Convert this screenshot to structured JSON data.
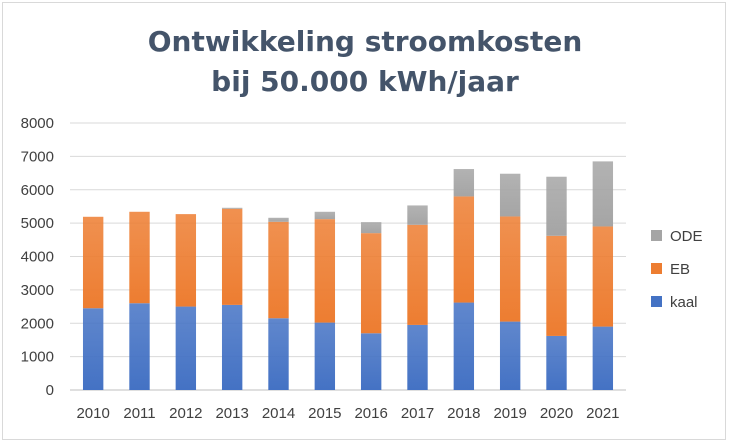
{
  "chart_data": {
    "type": "bar",
    "stacked": true,
    "title_line1": "Ontwikkeling stroomkosten",
    "title_line2": "bij 50.000 kWh/jaar",
    "categories": [
      "2010",
      "2011",
      "2012",
      "2013",
      "2014",
      "2015",
      "2016",
      "2017",
      "2018",
      "2019",
      "2020",
      "2021"
    ],
    "series": [
      {
        "name": "kaal",
        "color": "#4472c4",
        "values": [
          2450,
          2600,
          2500,
          2550,
          2150,
          2020,
          1700,
          1950,
          2620,
          2050,
          1620,
          1900
        ]
      },
      {
        "name": "EB",
        "color": "#ed7d31",
        "values": [
          2740,
          2740,
          2770,
          2880,
          2890,
          3100,
          3000,
          3000,
          3180,
          3150,
          3000,
          3000
        ]
      },
      {
        "name": "ODE",
        "color": "#a5a5a5",
        "values": [
          0,
          0,
          0,
          30,
          120,
          220,
          330,
          580,
          820,
          1280,
          1770,
          1950
        ]
      }
    ],
    "ylim": [
      0,
      8000
    ],
    "yticks": [
      0,
      1000,
      2000,
      3000,
      4000,
      5000,
      6000,
      7000,
      8000
    ],
    "grid": true,
    "legend": "right"
  }
}
